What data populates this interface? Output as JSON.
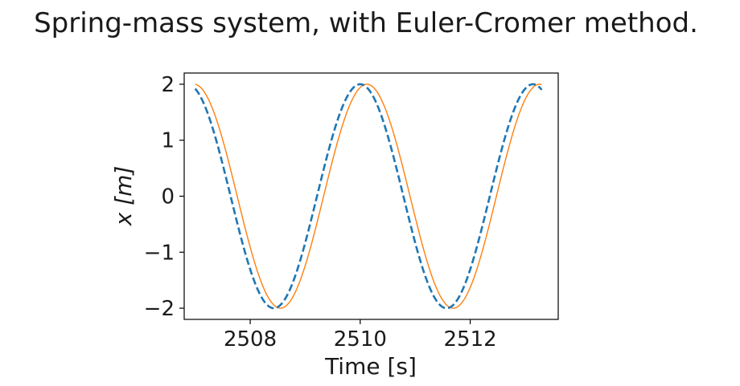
{
  "chart_data": {
    "type": "line",
    "title": "Spring-mass system, with Euler-Cromer method.",
    "xlabel": "Time [s]",
    "ylabel": "x [m]",
    "xlim": [
      2506.8,
      2513.6
    ],
    "ylim": [
      -2.2,
      2.2
    ],
    "xticks": [
      2508,
      2510,
      2512
    ],
    "xtick_labels": [
      "2508",
      "2510",
      "2512"
    ],
    "yticks": [
      -2,
      -1,
      0,
      1,
      2
    ],
    "ytick_labels": [
      "−2",
      "−1",
      "0",
      "1",
      "2"
    ],
    "grid": false,
    "legend": "none",
    "series": [
      {
        "color": "#1f77b4",
        "style": "dashed",
        "amplitude": 2,
        "period": 3.1416,
        "peak_time": 2510.0,
        "t_start": 2507.0,
        "t_end": 2513.3
      },
      {
        "color": "#ff7f0e",
        "style": "solid",
        "amplitude": 2,
        "period": 3.1416,
        "peak_time": 2510.12,
        "t_start": 2507.0,
        "t_end": 2513.3
      }
    ]
  }
}
